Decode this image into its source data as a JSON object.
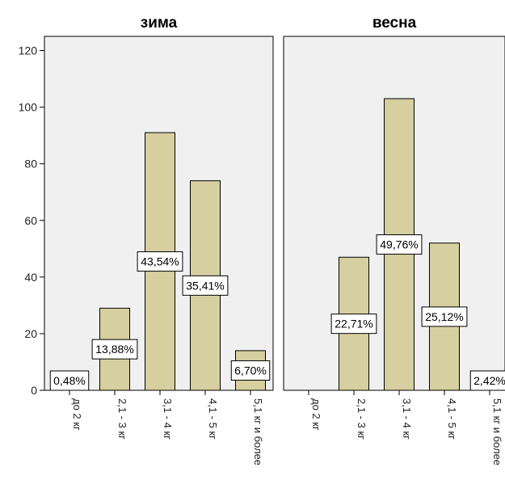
{
  "chart_data": {
    "type": "bar",
    "categories": [
      "до 2 кг",
      "2,1 - 3 кг",
      "3,1 - 4 кг",
      "4,1 - 5 кг",
      "5,1 кг и более"
    ],
    "panels": [
      {
        "title": "зима",
        "values": [
          1,
          29,
          91,
          74,
          14
        ],
        "labels": [
          "0,48%",
          "13,88%",
          "43,54%",
          "35,41%",
          "6,70%"
        ]
      },
      {
        "title": "весна",
        "values": [
          0,
          47,
          103,
          52,
          5
        ],
        "labels": [
          "",
          "22,71%",
          "49,76%",
          "25,12%",
          "2,42%"
        ]
      }
    ],
    "yticks": [
      "0",
      "20",
      "40",
      "60",
      "80",
      "100",
      "120"
    ],
    "ylim": [
      0,
      125
    ],
    "grid": false,
    "colors": {
      "bar_fill": "#d6cf9f",
      "panel_bg": "#f0f0f0",
      "frame": "#000000",
      "label_bg": "#ffffff"
    }
  }
}
